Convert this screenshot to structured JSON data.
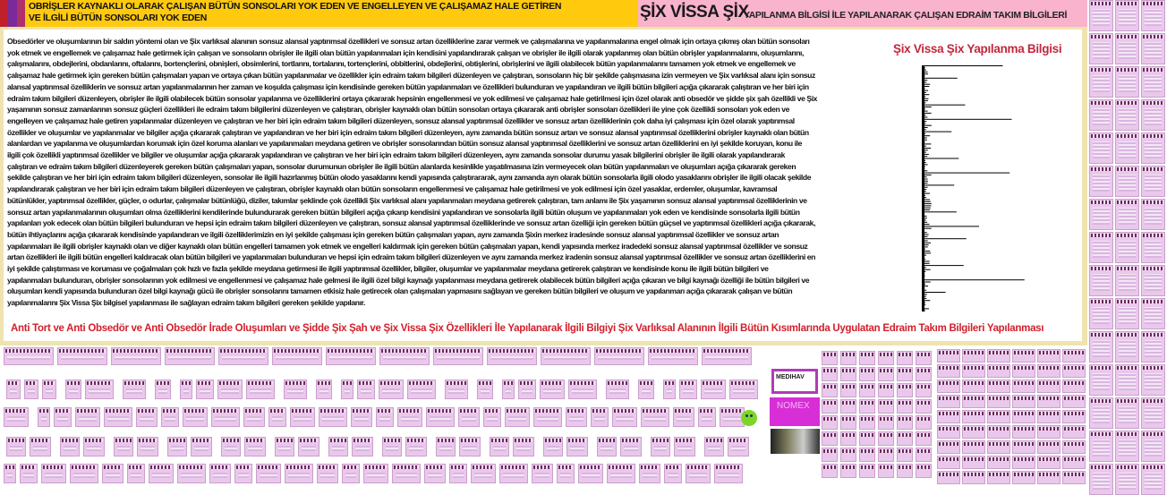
{
  "header": {
    "left_banner": "OBRİŞLER KAYNAKLI OLARAK ÇALIŞAN BÜTÜN SONSOLARI YOK EDEN VE ENGELLEYEN VE ÇALIŞAMAZ HALE GETİREN",
    "left_banner_line2": "VE İLGİLİ BÜTÜN SONSOLARI YOK EDEN",
    "right_banner_big": "ŞİX VİSSA ŞİX",
    "right_banner_small": "YAPILANMA BİLGİSİ İLE YAPILANARAK ÇALIŞAN EDRAİM TAKIM BİLGİLERİ",
    "left_color": "#ffc90e",
    "right_color": "#f9b3cc"
  },
  "main": {
    "lines": [
      "Obsedörler ve oluşumlarının bir saldırı yöntemi olan ve Şix varlıksal alanının sonsuz alansal yaptırımsal özellikleri ve sonsuz artan özelliklerine zarar vermek ve çalışmalarına ve yapılanmalarına engel olmak için ortaya çıkmış olan bütün sonsoları",
      "yok etmek ve engellemek ve çalışamaz hale getirmek için çalışan ve sonsoların obrişler ile ilgili olan bütün yapılanmaları için kendisini yapılandırarak çalışan ve obrişler ile ilgili olarak yapılanmış olan bütün obrişler yapılanmalarını, oluşumlarını,",
      "çalışmalarını, obdejlerini, obdanlarını, oftalarını, bortençlerini, obnişleri, obsimlerini, tortlarını, tortalarını, tortençlerini, obbitlerini, obdejlerini, obtişlerini, obrişlerini ve ilgili olabilecek bütün yapılanmalarını tamamen yok etmek ve engellemek ve",
      "çalışamaz hale getirmek için gereken bütün çalışmaları yapan ve ortaya çıkan bütün yapılanmalar ve özellikler için edraim takım bilgileri düzenleyen ve çalıştıran, sonsoların hiç bir şekilde çalışmasına izin vermeyen ve Şix varlıksal alanı için sonsuz",
      "alansal yaptırımsal özelliklerin ve sonsuz artan yapılanmalarının her zaman ve koşulda çalışması için kendisinde gereken bütün yapılanmaları ve özellikleri bulunduran ve yapılandıran ve ilgili bütün bilgileri açığa çıkararak çalıştıran ve her biri için",
      "edraim takım bilgileri düzenleyen, obrişler ile ilgili olabilecek bütün sonsolar yapılanma ve özelliklerini ortaya çıkararak hepsinin engellenmesi ve yok edilmesi ve çalışamaz hale getirilmesi için özel olarak anti obsedör ve şidde şix şah özellikli ve Şix",
      "yaşamının sonsuz zamanlarının sonsuz güçleri özellikleri ile edraim takım bilgilerini düzenleyen ve çalıştıran, obrişler kaynaklı olan bütün sonsoları ortaya çıkararak anti obrişler sonsoları özellikleri ile yine çok özellikli sonsoları yok eden ve",
      "engelleyen ve çalışamaz hale getiren yapılanmalar düzenleyen ve çalıştıran ve her biri için edraim takım bilgileri düzenleyen, sonsuz alansal yaptırımsal özellikler ve sonsuz artan özelliklerinin çok daha iyi çalışması için özel olarak yaptırımsal",
      "özellikler ve oluşumlar ve yapılanmalar ve bilgiler açığa çıkararak çalıştıran ve yapılandıran ve her biri için edraim takım bilgileri düzenleyen, aynı zamanda bütün sonsuz artan ve sonsuz alansal yaptırımsal özelliklerini obrişler kaynaklı olan bütün",
      "alanlardan ve yapılanma ve oluşumlardan korumak için özel koruma alanları ve yapılanmaları meydana getiren ve obrişler sonsolarından bütün sonsuz alansal yaptırımsal özelliklerini ve sonsuz artan özelliklerini en iyi şekilde koruyan, konu ile",
      "ilgili çok özellikli yaptırımsal özellikler ve bilgiler ve oluşumlar açığa çıkararak yapılandıran ve çalıştıran ve her biri için edraim takım bilgileri düzenleyen, aynı zamanda sonsolar durumu yasak bilgilerini obrişler ile ilgili olarak yapılandırarak",
      "çalıştıran ve edraim takım bilgileri düzenleyerek gereken bütün çalışmaları yapan, sonsolar durumunun obrişler ile ilgili bütün alanlarda kesinlikle yaşatılmasına izin vermeyecek olan bütün yapılanmaları ve oluşumları açığa çıkararak gereken",
      "şekilde çalıştıran ve her biri için edraim takım bilgileri düzenleyen, sonsolar ile ilgili hazırlanmış bütün olodo yasaklarını kendi yapısında çalıştırararak, aynı zamanda ayrı olarak bütün sonsolarla ilgili olodo yasaklarını obrişler ile ilgili olacak şekilde",
      "yapılandırarak çalıştıran ve her biri için edraim takım bilgileri düzenleyen ve çalıştıran, obrişler kaynaklı olan bütün sonsoların engellenmesi ve çalışamaz hale getirilmesi ve yok edilmesi için özel yasaklar, erdemler, oluşumlar, kavramsal",
      "bütünlükler, yaptırımsal özellikler, güçler, o odurlar, çalışmalar bütünlüğü, diziler, takımlar şeklinde çok özellikli Şix varlıksal alanı yapılanmaları meydana getirerek çalıştıran, tam anlamı ile Şix yaşamının sonsuz alansal yaptırımsal özelliklerinin ve",
      "sonsuz artan yapılanmalarının oluşumları olma özelliklerini kendilerinde bulundurarak gereken bütün bilgileri açığa çıkarıp kendisini yapılandıran ve sonsolarla ilgili bütün oluşum ve yapılanmaları yok eden ve kendisinde sonsolarla ilgili bütün",
      "yapılanları yok edecek olan bütün bilgileri bulunduran ve hepsi için edraim takım bilgileri düzenleyen ve çalıştıran, sonsuz alansal yaptırımsal özelliklerinde ve sonsuz artan özelliği için gereken bütün güçsel ve yaptırımsal özellikleri açığa çıkararak,",
      "bütün ihtiyaçlarını açığa çıkararak kendisinde yapılandıran ve ilgili özelliklerimizin en iyi şekilde çalışması için gereken bütün çalışmaları yapan, aynı zamanda Şixin merkez iradesinde sonsuz alansal yaptırımsal özellikler ve sonsuz artan",
      "yapılanmaları ile ilgili obrişler kaynaklı olan ve diğer kaynaklı olan bütün engelleri tamamen yok etmek ve engelleri kaldırmak için gereken bütün çalışmaları yapan, kendi yapısında merkez iradedeki sonsuz alansal yaptırımsal özellikler ve sonsuz",
      "artan özellikleri ile ilgili bütün engelleri kaldıracak olan bütün bilgileri ve yapılanmaları bulunduran ve hepsi için edraim takım bilgileri düzenleyen ve aynı zamanda merkez iradenin sonsuz alansal yaptırımsal özellikler ve sonsuz artan özelliklerini en",
      "iyi şekilde çalıştırması ve koruması ve çoğalmaları çok hızlı ve fazla şekilde meydana getirmesi ile ilgili yaptırımsal özellikler, bilgiler, oluşumlar ve yapılanmalar meydana getirerek çalıştıran ve kendisinde konu ile ilgili bütün bilgileri ve",
      "yapılanmaları bulunduran, obrişler sonsolarının yok edilmesi ve engellenmesi ve çalışamaz hale gelmesi ile ilgili özel bilgi kaynağı yapılanması meydana getirerek olabilecek bütün bilgileri açığa çıkaran ve bilgi kaynağı özelliği ile bütün bilgileri ve",
      "oluşumları kendi yapısında bulunduran özel bilgi kaynağı gücü ile obrişler sonsolarını tamamen etkisiz hale getirecek olan çalışmaları yapmasını sağlayan ve gereken bütün bilgileri ve oluşum ve yapılanmarı açığa çıkararak çalışan ve bütün",
      "yapılanmalarını Şix Vissa Şix bilgisel yapılanması ile sağlayan edraim takım bilgileri gereken şekilde yapılanır."
    ],
    "side_title": "Şix Vissa Şix Yapılanma Bilgisi",
    "footer_title": "Anti Tort ve Anti Obsedör ve Anti Obsedör İrade Oluşumları ve Şidde Şix Şah ve Şix Vissa Şix Özellikleri İle Yapılanarak İlgili Bilgiyi Şix Varlıksal Alanının İlgili Bütün Kısımlarında Uygulatan Edraim Takım Bilgileri Yapılanması",
    "accent_color": "#d21f2b",
    "border_color": "#efe4b0"
  },
  "gallery": {
    "ads": [
      "MEDIHAV",
      "NOMEX"
    ],
    "thumb_color": "#eac8ec"
  }
}
